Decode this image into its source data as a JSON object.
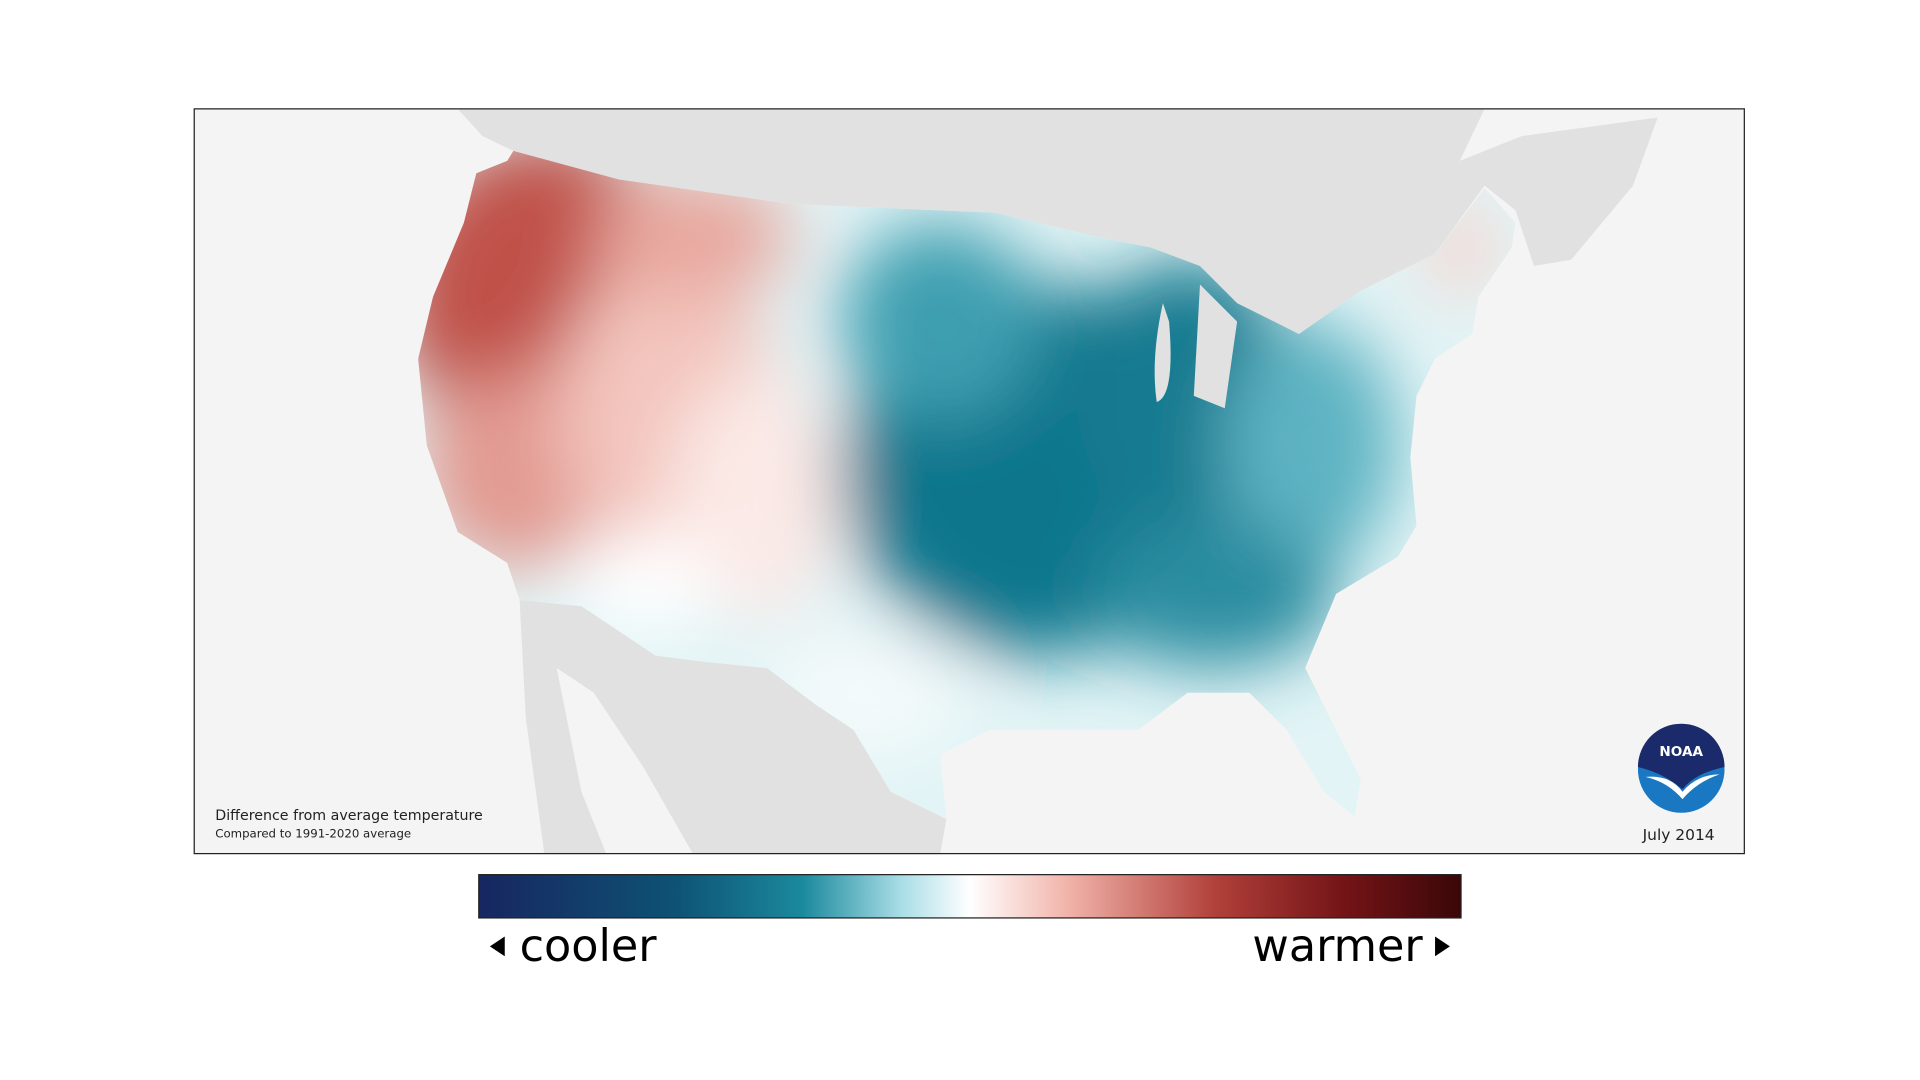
{
  "map": {
    "note_title": "Difference from average temperature",
    "note_subtitle": "Compared to 1991-2020 average",
    "date": "July 2014",
    "logo": "NOAA"
  },
  "legend": {
    "low_label": "cooler",
    "high_label": "warmer"
  }
}
